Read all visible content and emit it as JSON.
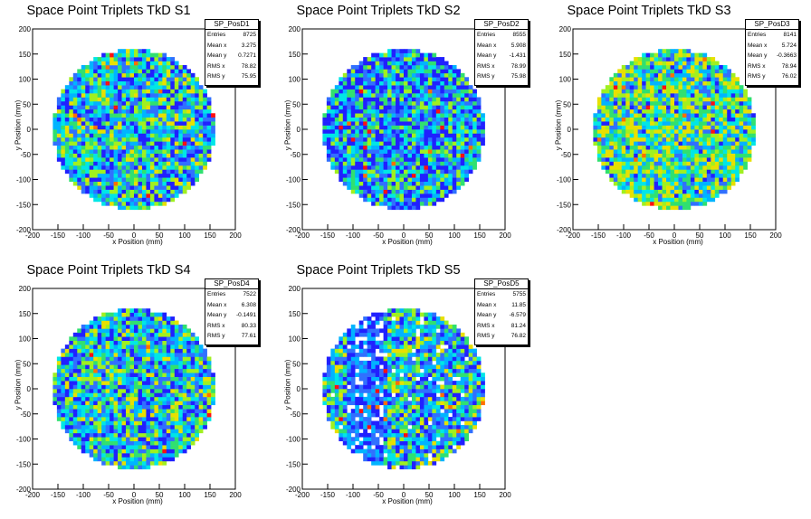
{
  "chart_data": [
    {
      "type": "heatmap",
      "title": "Space Point Triplets TkD S1",
      "stats_name": "SP_PosD1",
      "stats": [
        {
          "label": "Entries",
          "value": "8725"
        },
        {
          "label": "Mean x",
          "value": "3.275"
        },
        {
          "label": "Mean y",
          "value": "0.7271"
        },
        {
          "label": "RMS x",
          "value": "78.82"
        },
        {
          "label": "RMS y",
          "value": "75.95"
        }
      ],
      "xlabel": "x Position (mm)",
      "ylabel": "y Position (mm)",
      "xlim": [
        -200,
        200
      ],
      "ylim": [
        -200,
        200
      ],
      "bin_width": 8,
      "radius": 160,
      "x_ticks": [
        -200,
        -150,
        -100,
        -50,
        0,
        50,
        100,
        150,
        200
      ],
      "y_ticks": [
        -200,
        -150,
        -100,
        -50,
        0,
        50,
        100,
        150,
        200
      ],
      "palette": [
        "#2020ff",
        "#3070ff",
        "#00b4ff",
        "#00e6e6",
        "#30e070",
        "#a0f020",
        "#e8e000",
        "#ff7000",
        "#ff1010"
      ],
      "density_profile": "uniform",
      "seed": 11
    },
    {
      "type": "heatmap",
      "title": "Space Point Triplets TkD S2",
      "stats_name": "SP_PosD2",
      "stats": [
        {
          "label": "Entries",
          "value": "8555"
        },
        {
          "label": "Mean x",
          "value": "5.908"
        },
        {
          "label": "Mean y",
          "value": "-1.431"
        },
        {
          "label": "RMS x",
          "value": "78.99"
        },
        {
          "label": "RMS y",
          "value": "75.98"
        }
      ],
      "xlabel": "x Position (mm)",
      "ylabel": "y Position (mm)",
      "xlim": [
        -200,
        200
      ],
      "ylim": [
        -200,
        200
      ],
      "bin_width": 8,
      "radius": 160,
      "x_ticks": [
        -200,
        -150,
        -100,
        -50,
        0,
        50,
        100,
        150,
        200
      ],
      "y_ticks": [
        -200,
        -150,
        -100,
        -50,
        0,
        50,
        100,
        150,
        200
      ],
      "palette": [
        "#2020ff",
        "#3070ff",
        "#00b4ff",
        "#00e6e6",
        "#30e070",
        "#a0f020",
        "#e8e000",
        "#ff7000",
        "#ff1010"
      ],
      "density_profile": "cool",
      "seed": 23
    },
    {
      "type": "heatmap",
      "title": "Space Point Triplets TkD S3",
      "stats_name": "SP_PosD3",
      "stats": [
        {
          "label": "Entries",
          "value": "8141"
        },
        {
          "label": "Mean x",
          "value": "5.724"
        },
        {
          "label": "Mean y",
          "value": "-0.3663"
        },
        {
          "label": "RMS x",
          "value": "78.94"
        },
        {
          "label": "RMS y",
          "value": "76.02"
        }
      ],
      "xlabel": "x Position (mm)",
      "ylabel": "y Position (mm)",
      "xlim": [
        -200,
        200
      ],
      "ylim": [
        -200,
        200
      ],
      "bin_width": 8,
      "radius": 160,
      "x_ticks": [
        -200,
        -150,
        -100,
        -50,
        0,
        50,
        100,
        150,
        200
      ],
      "y_ticks": [
        -200,
        -150,
        -100,
        -50,
        0,
        50,
        100,
        150,
        200
      ],
      "palette": [
        "#2020ff",
        "#3070ff",
        "#00b4ff",
        "#00e6e6",
        "#30e070",
        "#a0f020",
        "#e8e000",
        "#ff7000",
        "#ff1010"
      ],
      "density_profile": "warm",
      "seed": 37
    },
    {
      "type": "heatmap",
      "title": "Space Point Triplets TkD S4",
      "stats_name": "SP_PosD4",
      "stats": [
        {
          "label": "Entries",
          "value": "7522"
        },
        {
          "label": "Mean x",
          "value": "6.308"
        },
        {
          "label": "Mean y",
          "value": "-0.1491"
        },
        {
          "label": "RMS x",
          "value": "80.33"
        },
        {
          "label": "RMS y",
          "value": "77.61"
        }
      ],
      "xlabel": "x Position (mm)",
      "ylabel": "y Position (mm)",
      "xlim": [
        -200,
        200
      ],
      "ylim": [
        -200,
        200
      ],
      "bin_width": 8,
      "radius": 160,
      "x_ticks": [
        -200,
        -150,
        -100,
        -50,
        0,
        50,
        100,
        150,
        200
      ],
      "y_ticks": [
        -200,
        -150,
        -100,
        -50,
        0,
        50,
        100,
        150,
        200
      ],
      "palette": [
        "#2020ff",
        "#3070ff",
        "#00b4ff",
        "#00e6e6",
        "#30e070",
        "#a0f020",
        "#e8e000",
        "#ff7000",
        "#ff1010"
      ],
      "density_profile": "uniform",
      "seed": 53
    },
    {
      "type": "heatmap",
      "title": "Space Point Triplets TkD S5",
      "stats_name": "SP_PosD5",
      "stats": [
        {
          "label": "Entries",
          "value": "5755"
        },
        {
          "label": "Mean x",
          "value": "11.85"
        },
        {
          "label": "Mean y",
          "value": "-6.579"
        },
        {
          "label": "RMS x",
          "value": "81.24"
        },
        {
          "label": "RMS y",
          "value": "76.82"
        }
      ],
      "xlabel": "x Position (mm)",
      "ylabel": "y Position (mm)",
      "xlim": [
        -200,
        200
      ],
      "ylim": [
        -200,
        200
      ],
      "bin_width": 8,
      "radius": 160,
      "x_ticks": [
        -200,
        -150,
        -100,
        -50,
        0,
        50,
        100,
        150,
        200
      ],
      "y_ticks": [
        -200,
        -150,
        -100,
        -50,
        0,
        50,
        100,
        150,
        200
      ],
      "palette": [
        "#2020ff",
        "#3070ff",
        "#00b4ff",
        "#00e6e6",
        "#30e070",
        "#a0f020",
        "#e8e000",
        "#ff7000",
        "#ff1010"
      ],
      "density_profile": "sparse",
      "seed": 71
    }
  ]
}
